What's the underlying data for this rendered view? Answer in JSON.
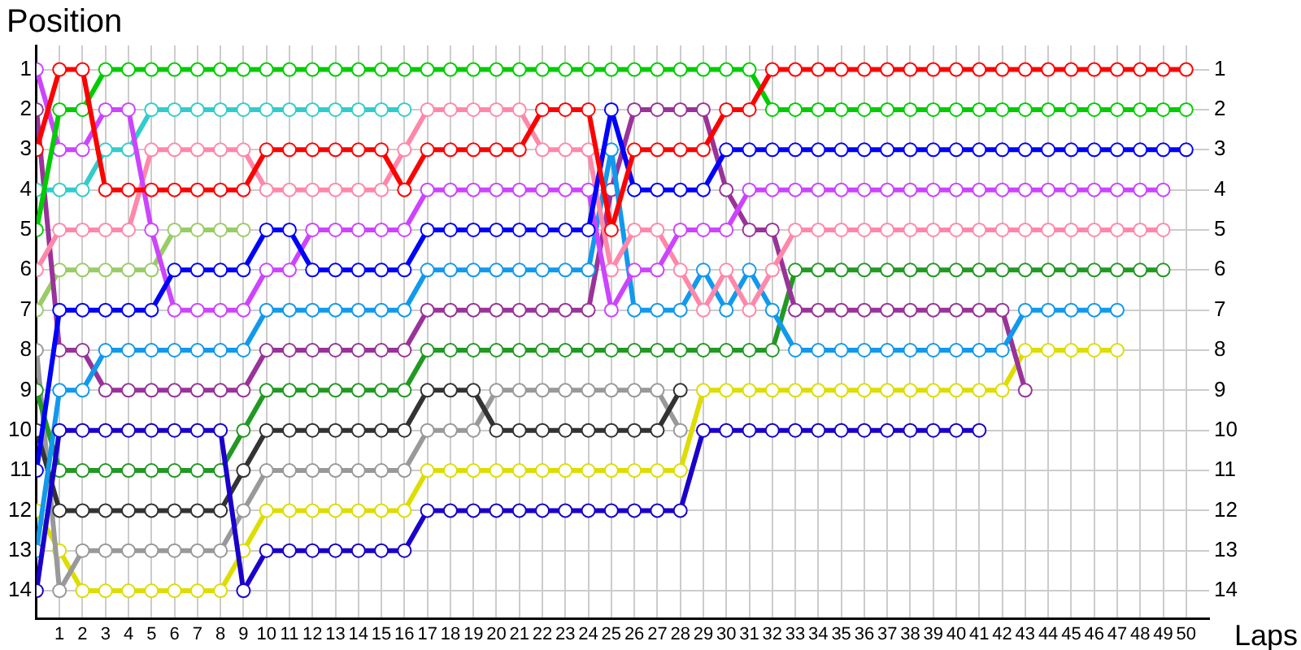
{
  "chart_data": {
    "type": "line",
    "ylabel": "Position",
    "xlabel": "Laps",
    "x": [
      0,
      1,
      2,
      3,
      4,
      5,
      6,
      7,
      8,
      9,
      10,
      11,
      12,
      13,
      14,
      15,
      16,
      17,
      18,
      19,
      20,
      21,
      22,
      23,
      24,
      25,
      26,
      27,
      28,
      29,
      30,
      31,
      32,
      33,
      34,
      35,
      36,
      37,
      38,
      39,
      40,
      41,
      42,
      43,
      44,
      45,
      46,
      47,
      48,
      49,
      50
    ],
    "xlim": [
      0,
      51
    ],
    "xticks": [
      1,
      2,
      3,
      4,
      5,
      6,
      7,
      8,
      9,
      10,
      11,
      12,
      13,
      14,
      15,
      16,
      17,
      18,
      19,
      20,
      21,
      22,
      23,
      24,
      25,
      26,
      27,
      28,
      29,
      30,
      31,
      32,
      33,
      34,
      35,
      36,
      37,
      38,
      39,
      40,
      41,
      42,
      43,
      44,
      45,
      46,
      47,
      48,
      49,
      50
    ],
    "ylim": [
      14.7,
      0.4
    ],
    "yticks": [
      1,
      2,
      3,
      4,
      5,
      6,
      7,
      8,
      9,
      10,
      11,
      12,
      13,
      14
    ],
    "y2lim": [
      14.7,
      0.4
    ],
    "y2ticks": [
      1,
      2,
      3,
      4,
      5,
      6,
      7,
      8,
      9,
      10,
      11,
      12,
      13,
      14
    ],
    "grid": true,
    "legend": false,
    "marker": "circle",
    "line_style": "solid",
    "series": [
      {
        "color": "#ff0000",
        "values": [
          3,
          1,
          1,
          4,
          4,
          4,
          4,
          4,
          4,
          4,
          3,
          3,
          3,
          3,
          3,
          3,
          4,
          3,
          3,
          3,
          3,
          3,
          2,
          2,
          2,
          5,
          3,
          3,
          3,
          3,
          2,
          2,
          1,
          1,
          1,
          1,
          1,
          1,
          1,
          1,
          1,
          1,
          1,
          1,
          1,
          1,
          1,
          1,
          1,
          1,
          1
        ]
      },
      {
        "color": "#00cc00",
        "values": [
          5,
          2,
          2,
          1,
          1,
          1,
          1,
          1,
          1,
          1,
          1,
          1,
          1,
          1,
          1,
          1,
          1,
          1,
          1,
          1,
          1,
          1,
          1,
          1,
          1,
          1,
          1,
          1,
          1,
          1,
          1,
          1,
          2,
          2,
          2,
          2,
          2,
          2,
          2,
          2,
          2,
          2,
          2,
          2,
          2,
          2,
          2,
          2,
          2,
          2,
          2
        ]
      },
      {
        "color": "#0000ff",
        "values": [
          11,
          7,
          7,
          7,
          7,
          7,
          6,
          6,
          6,
          6,
          5,
          5,
          6,
          6,
          6,
          6,
          6,
          5,
          5,
          5,
          5,
          5,
          5,
          5,
          5,
          2,
          4,
          4,
          4,
          4,
          3,
          3,
          3,
          3,
          3,
          3,
          3,
          3,
          3,
          3,
          3,
          3,
          3,
          3,
          3,
          3,
          3,
          3,
          3,
          3,
          3
        ]
      },
      {
        "color": "#1a00cc",
        "values": [
          14,
          10,
          10,
          10,
          10,
          10,
          10,
          10,
          10,
          14,
          13,
          13,
          13,
          13,
          13,
          13,
          13,
          12,
          12,
          12,
          12,
          12,
          12,
          12,
          12,
          12,
          12,
          12,
          12,
          10,
          10,
          10,
          10,
          10,
          10,
          10,
          10,
          10,
          10,
          10,
          10,
          10,
          null,
          null,
          null,
          null,
          null,
          null,
          null,
          null,
          null
        ]
      },
      {
        "color": "#cc44ff",
        "values": [
          1,
          3,
          3,
          2,
          2,
          5,
          7,
          7,
          7,
          7,
          6,
          6,
          5,
          5,
          5,
          5,
          5,
          4,
          4,
          4,
          4,
          4,
          4,
          4,
          4,
          7,
          6,
          6,
          5,
          5,
          5,
          4,
          4,
          4,
          4,
          4,
          4,
          4,
          4,
          4,
          4,
          4,
          4,
          4,
          4,
          4,
          4,
          4,
          4,
          4,
          null
        ]
      },
      {
        "color": "#33cccc",
        "values": [
          4,
          4,
          4,
          3,
          3,
          2,
          2,
          2,
          2,
          2,
          2,
          2,
          2,
          2,
          2,
          2,
          2,
          null,
          null,
          null,
          null,
          null,
          null,
          null,
          null,
          null,
          null,
          null,
          null,
          null,
          null,
          null,
          null,
          null,
          null,
          null,
          null,
          null,
          null,
          null,
          null,
          null,
          null,
          null,
          null,
          null,
          null,
          null,
          null,
          null,
          null
        ]
      },
      {
        "color": "#ff88aa",
        "values": [
          6,
          5,
          5,
          5,
          5,
          3,
          3,
          3,
          3,
          3,
          4,
          4,
          4,
          4,
          4,
          4,
          3,
          2,
          2,
          2,
          2,
          2,
          3,
          3,
          3,
          6,
          5,
          5,
          6,
          7,
          6,
          7,
          6,
          5,
          5,
          5,
          5,
          5,
          5,
          5,
          5,
          5,
          5,
          5,
          5,
          5,
          5,
          5,
          5,
          5,
          null
        ]
      },
      {
        "color": "#1199ee",
        "values": [
          13,
          9,
          9,
          8,
          8,
          8,
          8,
          8,
          8,
          8,
          7,
          7,
          7,
          7,
          7,
          7,
          7,
          6,
          6,
          6,
          6,
          6,
          6,
          6,
          6,
          3,
          7,
          7,
          7,
          6,
          7,
          6,
          7,
          8,
          8,
          8,
          8,
          8,
          8,
          8,
          8,
          8,
          8,
          7,
          7,
          7,
          7,
          7,
          null,
          null,
          null
        ]
      },
      {
        "color": "#993399",
        "values": [
          2,
          8,
          8,
          9,
          9,
          9,
          9,
          9,
          9,
          9,
          8,
          8,
          8,
          8,
          8,
          8,
          8,
          7,
          7,
          7,
          7,
          7,
          7,
          7,
          7,
          4,
          2,
          2,
          2,
          2,
          4,
          5,
          5,
          7,
          7,
          7,
          7,
          7,
          7,
          7,
          7,
          7,
          7,
          9,
          null,
          null,
          null,
          null,
          null,
          null,
          null
        ]
      },
      {
        "color": "#229922",
        "values": [
          9,
          11,
          11,
          11,
          11,
          11,
          11,
          11,
          11,
          10,
          9,
          9,
          9,
          9,
          9,
          9,
          9,
          8,
          8,
          8,
          8,
          8,
          8,
          8,
          8,
          8,
          8,
          8,
          8,
          8,
          8,
          8,
          8,
          6,
          6,
          6,
          6,
          6,
          6,
          6,
          6,
          6,
          6,
          6,
          6,
          6,
          6,
          6,
          6,
          6,
          null
        ]
      },
      {
        "color": "#99cc66",
        "values": [
          7,
          6,
          6,
          6,
          6,
          6,
          5,
          5,
          5,
          5,
          null,
          null,
          null,
          null,
          null,
          null,
          null,
          null,
          null,
          null,
          null,
          null,
          null,
          null,
          null,
          null,
          null,
          null,
          null,
          null,
          null,
          null,
          null,
          null,
          null,
          null,
          null,
          null,
          null,
          null,
          null,
          null,
          null,
          null,
          null,
          null,
          null,
          null,
          null,
          null,
          null
        ]
      },
      {
        "color": "#333333",
        "values": [
          10,
          12,
          12,
          12,
          12,
          12,
          12,
          12,
          12,
          11,
          10,
          10,
          10,
          10,
          10,
          10,
          10,
          9,
          9,
          9,
          10,
          10,
          10,
          10,
          10,
          10,
          10,
          10,
          9,
          null,
          null,
          null,
          null,
          null,
          null,
          null,
          null,
          null,
          null,
          null,
          null,
          null,
          null,
          null,
          null,
          null,
          null,
          null,
          null,
          null,
          null
        ]
      },
      {
        "color": "#999999",
        "values": [
          8,
          14,
          13,
          13,
          13,
          13,
          13,
          13,
          13,
          12,
          11,
          11,
          11,
          11,
          11,
          11,
          11,
          10,
          10,
          10,
          9,
          9,
          9,
          9,
          9,
          9,
          9,
          9,
          10,
          null,
          null,
          null,
          null,
          null,
          null,
          null,
          null,
          null,
          null,
          null,
          null,
          null,
          null,
          null,
          null,
          null,
          null,
          null,
          null,
          null,
          null
        ]
      },
      {
        "color": "#dddd00",
        "values": [
          12,
          13,
          14,
          14,
          14,
          14,
          14,
          14,
          14,
          13,
          12,
          12,
          12,
          12,
          12,
          12,
          12,
          11,
          11,
          11,
          11,
          11,
          11,
          11,
          11,
          11,
          11,
          11,
          11,
          9,
          9,
          9,
          9,
          9,
          9,
          9,
          9,
          9,
          9,
          9,
          9,
          9,
          9,
          8,
          8,
          8,
          8,
          8,
          null,
          null,
          null
        ]
      }
    ]
  }
}
